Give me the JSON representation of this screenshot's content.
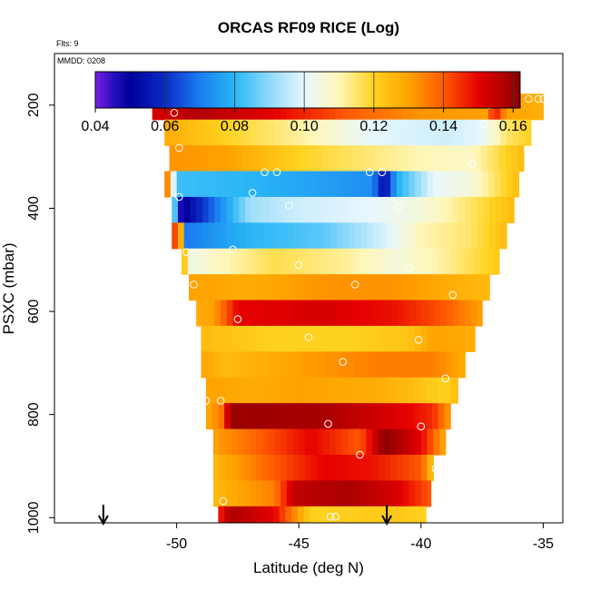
{
  "chart_data": {
    "type": "heatmap",
    "title": "ORCAS RF09 RICE (Log)",
    "flights_note": "Flts: 9",
    "date_note": "MMDD: 0208",
    "xlabel": "Latitude (deg N)",
    "ylabel": "PSXC (mbar)",
    "xlim": [
      -55.0,
      -34.2
    ],
    "ylim": [
      1010,
      100
    ],
    "x_ticks": [
      -50,
      -45,
      -40,
      -35
    ],
    "y_ticks": [
      200,
      400,
      600,
      800,
      1000
    ],
    "colorbar": {
      "range": [
        0.04,
        0.162
      ],
      "ticks": [
        0.04,
        0.06,
        0.08,
        0.1,
        0.12,
        0.14,
        0.16
      ],
      "tick_labels": [
        "0.04",
        "0.06",
        "0.08",
        "0.10",
        "0.12",
        "0.14",
        "0.16"
      ],
      "gridlines": [
        0.06,
        0.08,
        0.1,
        0.12,
        0.14,
        0.16
      ],
      "palette": [
        {
          "v": 0.04,
          "c": "#7d1fe8"
        },
        {
          "v": 0.045,
          "c": "#2a0fbf"
        },
        {
          "v": 0.05,
          "c": "#00009a"
        },
        {
          "v": 0.06,
          "c": "#0a2bc4"
        },
        {
          "v": 0.07,
          "c": "#1a7cf0"
        },
        {
          "v": 0.08,
          "c": "#29b6f6"
        },
        {
          "v": 0.09,
          "c": "#8fd9fb"
        },
        {
          "v": 0.1,
          "c": "#e8f7fd"
        },
        {
          "v": 0.11,
          "c": "#fff7b8"
        },
        {
          "v": 0.12,
          "c": "#ffd21f"
        },
        {
          "v": 0.13,
          "c": "#ffa200"
        },
        {
          "v": 0.14,
          "c": "#ff5a00"
        },
        {
          "v": 0.15,
          "c": "#e60000"
        },
        {
          "v": 0.162,
          "c": "#8b0000"
        }
      ]
    },
    "layers": [
      {
        "p_top": 178,
        "p_bot": 228,
        "xmin": -51.0,
        "xmax": -35.0,
        "profile": [
          [
            -51.0,
            0.152
          ],
          [
            -49.0,
            0.157
          ],
          [
            -46.0,
            0.15
          ],
          [
            -43.0,
            0.14
          ],
          [
            -40.0,
            0.132
          ],
          [
            -37.3,
            0.13
          ],
          [
            -37.0,
            0.15
          ],
          [
            -36.5,
            0.13
          ],
          [
            -35.0,
            0.127
          ]
        ]
      },
      {
        "p_top": 228,
        "p_bot": 278,
        "xmin": -50.5,
        "xmax": -35.5,
        "profile": [
          [
            -50.5,
            0.128
          ],
          [
            -48.0,
            0.12
          ],
          [
            -45.0,
            0.112
          ],
          [
            -42.0,
            0.1
          ],
          [
            -39.0,
            0.097
          ],
          [
            -37.5,
            0.1
          ],
          [
            -36.5,
            0.115
          ],
          [
            -35.5,
            0.12
          ]
        ]
      },
      {
        "p_top": 278,
        "p_bot": 328,
        "xmin": -50.3,
        "xmax": -35.8,
        "profile": [
          [
            -50.3,
            0.132
          ],
          [
            -48.0,
            0.13
          ],
          [
            -45.0,
            0.12
          ],
          [
            -42.0,
            0.114
          ],
          [
            -40.0,
            0.11
          ],
          [
            -38.0,
            0.108
          ],
          [
            -36.5,
            0.12
          ],
          [
            -35.8,
            0.125
          ]
        ]
      },
      {
        "p_top": 328,
        "p_bot": 378,
        "xmin": -50.5,
        "xmax": -36.0,
        "profile": [
          [
            -50.5,
            0.15
          ],
          [
            -50.0,
            0.082
          ],
          [
            -47.0,
            0.08
          ],
          [
            -44.0,
            0.076
          ],
          [
            -42.0,
            0.073
          ],
          [
            -41.5,
            0.052
          ],
          [
            -41.0,
            0.078
          ],
          [
            -39.5,
            0.1
          ],
          [
            -38.0,
            0.105
          ],
          [
            -37.0,
            0.115
          ],
          [
            -36.0,
            0.125
          ]
        ]
      },
      {
        "p_top": 378,
        "p_bot": 428,
        "xmin": -50.2,
        "xmax": -36.2,
        "profile": [
          [
            -50.2,
            0.15
          ],
          [
            -50.0,
            0.044
          ],
          [
            -49.5,
            0.052
          ],
          [
            -48.5,
            0.068
          ],
          [
            -47.0,
            0.092
          ],
          [
            -45.0,
            0.097
          ],
          [
            -42.0,
            0.1
          ],
          [
            -40.0,
            0.105
          ],
          [
            -38.0,
            0.115
          ],
          [
            -36.2,
            0.125
          ]
        ]
      },
      {
        "p_top": 428,
        "p_bot": 478,
        "xmin": -50.2,
        "xmax": -36.5,
        "profile": [
          [
            -50.2,
            0.15
          ],
          [
            -49.8,
            0.125
          ],
          [
            -49.6,
            0.07
          ],
          [
            -47.0,
            0.08
          ],
          [
            -44.0,
            0.085
          ],
          [
            -41.5,
            0.098
          ],
          [
            -40.0,
            0.11
          ],
          [
            -38.0,
            0.115
          ],
          [
            -36.5,
            0.125
          ]
        ]
      },
      {
        "p_top": 478,
        "p_bot": 528,
        "xmin": -49.8,
        "xmax": -36.8,
        "profile": [
          [
            -49.8,
            0.13
          ],
          [
            -49.4,
            0.103
          ],
          [
            -48.5,
            0.108
          ],
          [
            -46.0,
            0.117
          ],
          [
            -43.0,
            0.112
          ],
          [
            -41.0,
            0.105
          ],
          [
            -39.0,
            0.112
          ],
          [
            -36.8,
            0.122
          ]
        ]
      },
      {
        "p_top": 528,
        "p_bot": 578,
        "xmin": -49.5,
        "xmax": -37.2,
        "profile": [
          [
            -49.5,
            0.13
          ],
          [
            -47.0,
            0.128
          ],
          [
            -44.0,
            0.132
          ],
          [
            -41.0,
            0.132
          ],
          [
            -39.0,
            0.128
          ],
          [
            -37.2,
            0.125
          ]
        ]
      },
      {
        "p_top": 578,
        "p_bot": 628,
        "xmin": -49.2,
        "xmax": -37.5,
        "profile": [
          [
            -49.2,
            0.128
          ],
          [
            -48.5,
            0.13
          ],
          [
            -47.5,
            0.15
          ],
          [
            -44.0,
            0.152
          ],
          [
            -41.0,
            0.148
          ],
          [
            -39.0,
            0.14
          ],
          [
            -37.5,
            0.13
          ]
        ]
      },
      {
        "p_top": 628,
        "p_bot": 678,
        "xmin": -49.0,
        "xmax": -37.8,
        "profile": [
          [
            -49.0,
            0.125
          ],
          [
            -46.0,
            0.12
          ],
          [
            -43.0,
            0.12
          ],
          [
            -40.5,
            0.123
          ],
          [
            -39.5,
            0.13
          ],
          [
            -37.8,
            0.128
          ]
        ]
      },
      {
        "p_top": 678,
        "p_bot": 728,
        "xmin": -49.0,
        "xmax": -38.2,
        "profile": [
          [
            -49.0,
            0.13
          ],
          [
            -48.0,
            0.125
          ],
          [
            -45.0,
            0.13
          ],
          [
            -42.0,
            0.135
          ],
          [
            -39.5,
            0.135
          ],
          [
            -38.2,
            0.128
          ]
        ]
      },
      {
        "p_top": 728,
        "p_bot": 778,
        "xmin": -48.8,
        "xmax": -38.5,
        "profile": [
          [
            -48.8,
            0.13
          ],
          [
            -47.0,
            0.128
          ],
          [
            -45.0,
            0.13
          ],
          [
            -42.0,
            0.128
          ],
          [
            -40.5,
            0.125
          ],
          [
            -39.0,
            0.12
          ],
          [
            -38.5,
            0.125
          ]
        ]
      },
      {
        "p_top": 778,
        "p_bot": 828,
        "xmin": -48.8,
        "xmax": -38.8,
        "profile": [
          [
            -48.8,
            0.128
          ],
          [
            -48.2,
            0.135
          ],
          [
            -47.8,
            0.16
          ],
          [
            -44.0,
            0.158
          ],
          [
            -40.5,
            0.15
          ],
          [
            -39.5,
            0.145
          ],
          [
            -38.8,
            0.13
          ]
        ]
      },
      {
        "p_top": 828,
        "p_bot": 878,
        "xmin": -48.5,
        "xmax": -39.0,
        "profile": [
          [
            -48.5,
            0.13
          ],
          [
            -46.5,
            0.14
          ],
          [
            -44.5,
            0.15
          ],
          [
            -42.5,
            0.14
          ],
          [
            -41.5,
            0.162
          ],
          [
            -40.0,
            0.15
          ],
          [
            -39.0,
            0.128
          ]
        ]
      },
      {
        "p_top": 878,
        "p_bot": 928,
        "xmin": -48.5,
        "xmax": -39.5,
        "profile": [
          [
            -48.5,
            0.125
          ],
          [
            -46.0,
            0.14
          ],
          [
            -44.0,
            0.15
          ],
          [
            -42.0,
            0.148
          ],
          [
            -40.0,
            0.14
          ],
          [
            -39.5,
            0.122
          ]
        ]
      },
      {
        "p_top": 928,
        "p_bot": 978,
        "xmin": -48.5,
        "xmax": -39.6,
        "profile": [
          [
            -48.5,
            0.125
          ],
          [
            -46.0,
            0.135
          ],
          [
            -45.2,
            0.155
          ],
          [
            -43.0,
            0.158
          ],
          [
            -41.0,
            0.152
          ],
          [
            -39.6,
            0.14
          ]
        ]
      },
      {
        "p_top": 978,
        "p_bot": 1010,
        "xmin": -48.3,
        "xmax": -39.8,
        "profile": [
          [
            -48.3,
            0.145
          ],
          [
            -47.8,
            0.158
          ],
          [
            -46.0,
            0.15
          ],
          [
            -44.5,
            0.12
          ],
          [
            -41.0,
            0.122
          ],
          [
            -39.8,
            0.12
          ]
        ]
      }
    ],
    "markers": [
      [
        -50.8,
        190
      ],
      [
        -50.1,
        215
      ],
      [
        -49.9,
        283
      ],
      [
        -49.3,
        548
      ],
      [
        -48.8,
        773
      ],
      [
        -48.5,
        988
      ],
      [
        -48.1,
        968
      ],
      [
        -48.6,
        995
      ],
      [
        -49.6,
        485
      ],
      [
        -49.9,
        378
      ],
      [
        -48.2,
        773
      ],
      [
        -47.7,
        480
      ],
      [
        -47.5,
        615
      ],
      [
        -46.9,
        370
      ],
      [
        -46.4,
        330
      ],
      [
        -45.9,
        330
      ],
      [
        -45.4,
        395
      ],
      [
        -45.0,
        510
      ],
      [
        -44.6,
        650
      ],
      [
        -43.8,
        818
      ],
      [
        -43.2,
        698
      ],
      [
        -42.7,
        548
      ],
      [
        -42.5,
        878
      ],
      [
        -42.1,
        330
      ],
      [
        -41.6,
        330
      ],
      [
        -40.9,
        398
      ],
      [
        -40.5,
        515
      ],
      [
        -40.1,
        655
      ],
      [
        -40.0,
        823
      ],
      [
        -39.6,
        995
      ],
      [
        -39.4,
        905
      ],
      [
        -39.0,
        730
      ],
      [
        -38.7,
        568
      ],
      [
        -37.9,
        315
      ],
      [
        -37.4,
        237
      ],
      [
        -37.0,
        188
      ],
      [
        -36.9,
        188
      ],
      [
        -38.5,
        188
      ],
      [
        -38.1,
        188
      ],
      [
        -37.7,
        188
      ],
      [
        -36.5,
        188
      ],
      [
        -35.6,
        188
      ],
      [
        -35.2,
        188
      ],
      [
        -35.0,
        188
      ],
      [
        -43.7,
        998
      ],
      [
        -43.5,
        998
      ],
      [
        -37.2,
        200
      ]
    ],
    "arrows": [
      -53.0,
      -41.4
    ]
  }
}
